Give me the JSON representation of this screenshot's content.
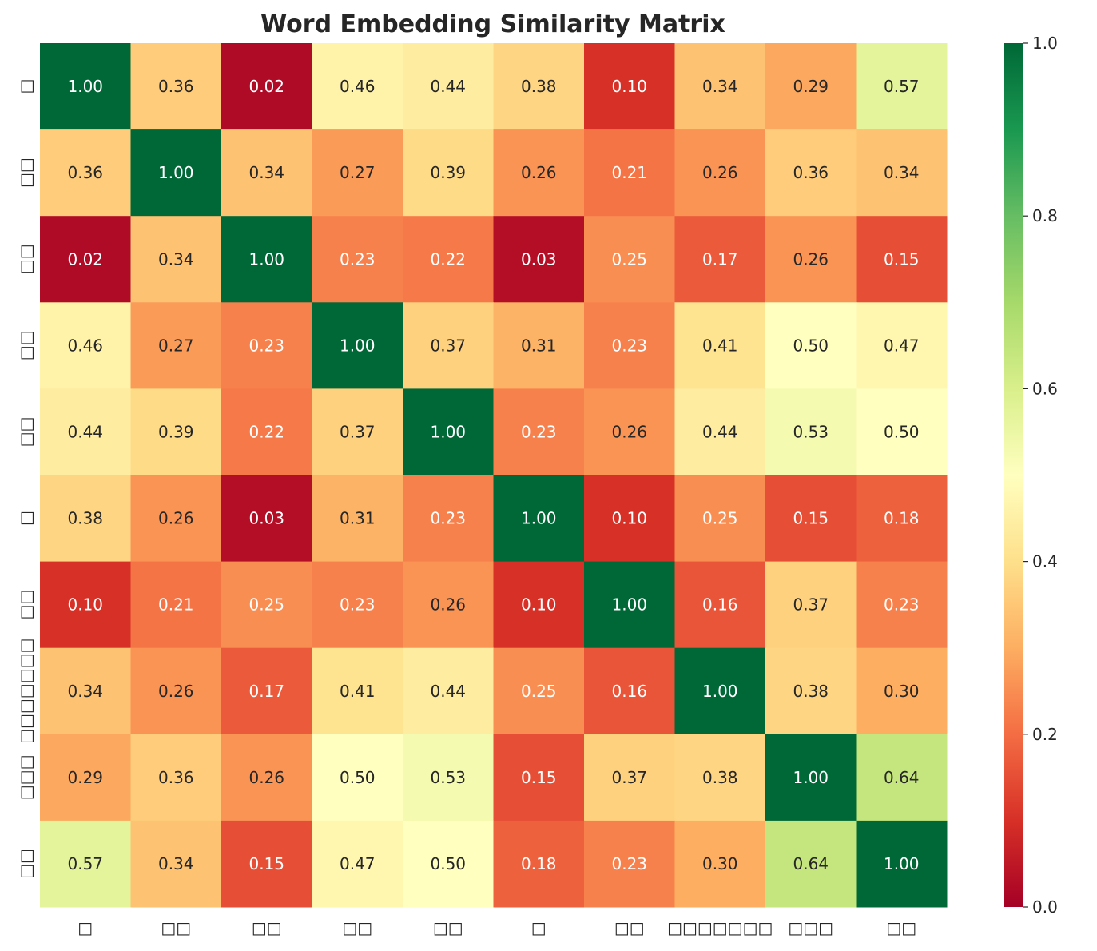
{
  "chart_data": {
    "type": "heatmap",
    "title": "Word Embedding Similarity Matrix",
    "x_labels": [
      "□",
      "□□",
      "□□",
      "□□",
      "□□",
      "□",
      "□□",
      "□□□□□□□",
      "□□□",
      "□□"
    ],
    "y_labels": [
      "□",
      "□□",
      "□□",
      "□□",
      "□□",
      "□",
      "□□",
      "□□□□□□□",
      "□□□",
      "□□"
    ],
    "values": [
      [
        1.0,
        0.36,
        0.02,
        0.46,
        0.44,
        0.38,
        0.1,
        0.34,
        0.29,
        0.57
      ],
      [
        0.36,
        1.0,
        0.34,
        0.27,
        0.39,
        0.26,
        0.21,
        0.26,
        0.36,
        0.34
      ],
      [
        0.02,
        0.34,
        1.0,
        0.23,
        0.22,
        0.03,
        0.25,
        0.17,
        0.26,
        0.15
      ],
      [
        0.46,
        0.27,
        0.23,
        1.0,
        0.37,
        0.31,
        0.23,
        0.41,
        0.5,
        0.47
      ],
      [
        0.44,
        0.39,
        0.22,
        0.37,
        1.0,
        0.23,
        0.26,
        0.44,
        0.53,
        0.5
      ],
      [
        0.38,
        0.26,
        0.03,
        0.31,
        0.23,
        1.0,
        0.1,
        0.25,
        0.15,
        0.18
      ],
      [
        0.1,
        0.21,
        0.25,
        0.23,
        0.26,
        0.1,
        1.0,
        0.16,
        0.37,
        0.23
      ],
      [
        0.34,
        0.26,
        0.17,
        0.41,
        0.44,
        0.25,
        0.16,
        1.0,
        0.38,
        0.3
      ],
      [
        0.29,
        0.36,
        0.26,
        0.5,
        0.53,
        0.15,
        0.37,
        0.38,
        1.0,
        0.64
      ],
      [
        0.57,
        0.34,
        0.15,
        0.47,
        0.5,
        0.18,
        0.23,
        0.3,
        0.64,
        1.0
      ]
    ],
    "colormap": "RdYlGn",
    "colormap_stops": [
      "#a50026",
      "#d73027",
      "#f46d43",
      "#fdae61",
      "#fee08b",
      "#ffffbf",
      "#d9ef8b",
      "#a6d96a",
      "#66bd63",
      "#1a9850",
      "#006837"
    ],
    "vmin": 0.0,
    "vmax": 1.0,
    "annotation_format": "0.00",
    "colorbar": {
      "position": "right",
      "ticks": [
        "0.0",
        "0.2",
        "0.4",
        "0.6",
        "0.8",
        "1.0"
      ]
    }
  }
}
